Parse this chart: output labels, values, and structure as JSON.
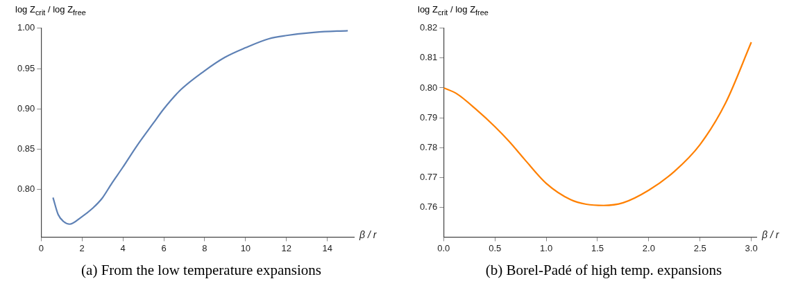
{
  "chart_data": [
    {
      "type": "line",
      "title": "(a) From the low temperature expansions",
      "xlabel": "β / r",
      "ylabel": "log Z$_{crit}$ / log Z$_{free}$",
      "x": [
        0.58,
        0.83,
        1.11,
        1.39,
        1.98,
        2.53,
        2.98,
        3.44,
        3.98,
        4.68,
        5.48,
        6.0,
        6.84,
        7.98,
        8.99,
        10.01,
        11.14,
        12.0,
        13.41,
        15.0
      ],
      "series": [
        {
          "color": "#5e81b5",
          "values": [
            0.79,
            0.769,
            0.76,
            0.757,
            0.766,
            0.777,
            0.789,
            0.807,
            0.827,
            0.854,
            0.882,
            0.9,
            0.924,
            0.947,
            0.964,
            0.976,
            0.987,
            0.991,
            0.995,
            0.997
          ]
        }
      ],
      "xlim": [
        0,
        15.3
      ],
      "xticks": [
        0,
        2,
        4,
        6,
        8,
        10,
        12,
        14
      ],
      "ylim": [
        0.741,
        1.0
      ],
      "yticks": [
        {
          "value": 0.8,
          "label": "0.80"
        },
        {
          "value": 0.85,
          "label": "0.85"
        },
        {
          "value": 0.9,
          "label": "0.90"
        },
        {
          "value": 0.95,
          "label": "0.95"
        },
        {
          "value": 1.0,
          "label": "1.00"
        }
      ],
      "grid": false,
      "legend": false,
      "marker": "none",
      "line_style": "solid"
    },
    {
      "type": "line",
      "title": "(b) Borel-Padé of high temp. expansions",
      "xlabel": "β / r",
      "ylabel": "log Z$_{crit}$ / log Z$_{free}$",
      "x": [
        0,
        0.13,
        0.31,
        0.5,
        0.64,
        0.79,
        1.0,
        1.24,
        1.39,
        1.56,
        1.75,
        2.0,
        2.25,
        2.5,
        2.75,
        3.0
      ],
      "series": [
        {
          "color": "#ff8000",
          "values": [
            0.8,
            0.798,
            0.793,
            0.787,
            0.782,
            0.776,
            0.768,
            0.7625,
            0.761,
            0.7606,
            0.7615,
            0.7657,
            0.772,
            0.781,
            0.795,
            0.8153
          ]
        }
      ],
      "xlim": [
        0,
        3.05
      ],
      "xticks": [
        {
          "value": 0,
          "label": "0.0"
        },
        0.5,
        {
          "value": 1,
          "label": "1.0"
        },
        1.5,
        {
          "value": 2,
          "label": "2.0"
        },
        2.5,
        {
          "value": 3,
          "label": "3.0"
        }
      ],
      "ylim": [
        0.75,
        0.82
      ],
      "yticks": [
        0.76,
        0.77,
        0.78,
        0.79,
        {
          "value": 0.8,
          "label": "0.80"
        },
        0.81,
        0.82
      ],
      "grid": false,
      "legend": false,
      "marker": "none",
      "line_style": "solid"
    }
  ]
}
